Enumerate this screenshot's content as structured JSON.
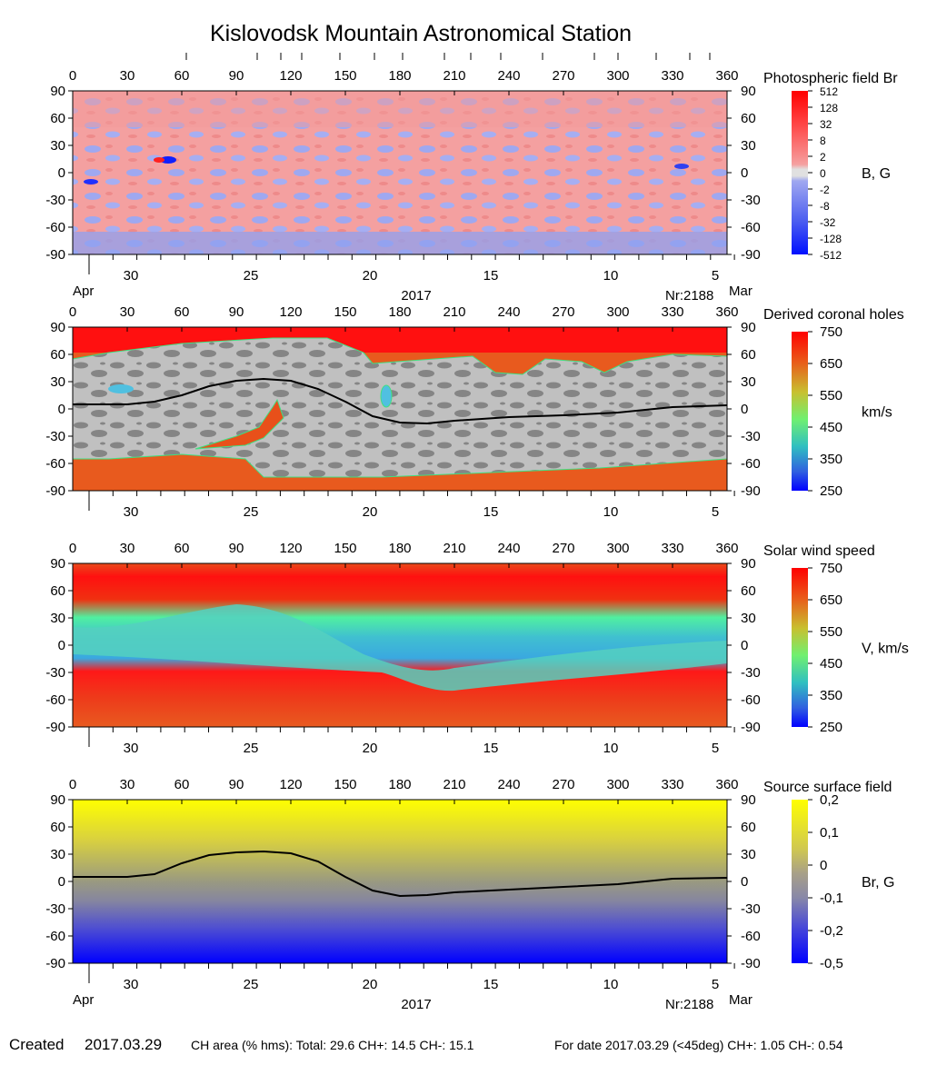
{
  "title": "Kislovodsk Mountain Astronomical Station",
  "footer": {
    "created_label": "Created",
    "created_date": "2017.03.29",
    "ch_area": "CH area (% hms): Total: 29.6 CH+: 14.5    CH-: 15.1",
    "ch_for_date": "For date 2017.03.29 (<45deg) CH+: 1.05    CH-: 0.54"
  },
  "colors": {
    "br_positive": "#f08a8a",
    "br_negative": "#8f9ef0",
    "ch_red": "#f01010",
    "ch_orange": "#e8501a",
    "ch_light_gray": "#c0c0c0",
    "ch_dark_gray": "#808080",
    "neutral_line": "#000000",
    "source_yellow": "#ffff00",
    "source_blue": "#0000ff"
  },
  "chart_data": [
    {
      "type": "heatmap",
      "title": "Photospheric field Br",
      "colorbar_label": "B, G",
      "colorbar_ticks": [
        "512",
        "128",
        "32",
        "8",
        "2",
        "0",
        "-2",
        "-8",
        "-32",
        "-128",
        "-512"
      ],
      "x_top_ticks": [
        0,
        30,
        60,
        90,
        120,
        150,
        180,
        210,
        240,
        270,
        300,
        330,
        360
      ],
      "y_ticks": [
        90,
        60,
        30,
        0,
        -30,
        -60,
        -90
      ],
      "date_ticks": [
        "30",
        "25",
        "20",
        "15",
        "10",
        "5"
      ],
      "month_left": "Apr",
      "month_right": "Mar",
      "year": "2017",
      "rotation": "Nr:2188",
      "xlim": [
        0,
        360
      ],
      "ylim": [
        -90,
        90
      ]
    },
    {
      "type": "heatmap",
      "title": "Derived coronal holes",
      "colorbar_label": "km/s",
      "colorbar_ticks": [
        "750",
        "650",
        "550",
        "450",
        "350",
        "250"
      ],
      "x_top_ticks": [
        0,
        30,
        60,
        90,
        120,
        150,
        180,
        210,
        240,
        270,
        300,
        330,
        360
      ],
      "y_ticks": [
        90,
        60,
        30,
        0,
        -30,
        -60,
        -90
      ],
      "date_ticks": [
        "30",
        "25",
        "20",
        "15",
        "10",
        "5"
      ],
      "neutral_line": {
        "lon": [
          0,
          30,
          45,
          60,
          75,
          90,
          105,
          120,
          135,
          150,
          165,
          180,
          195,
          210,
          240,
          270,
          300,
          330,
          360
        ],
        "lat": [
          5,
          5,
          8,
          15,
          25,
          31,
          33,
          31,
          22,
          8,
          -8,
          -15,
          -16,
          -13,
          -9,
          -7,
          -4,
          2,
          4
        ]
      },
      "xlim": [
        0,
        360
      ],
      "ylim": [
        -90,
        90
      ]
    },
    {
      "type": "heatmap",
      "title": "Solar wind speed",
      "colorbar_label": "V, km/s",
      "colorbar_ticks": [
        "750",
        "650",
        "550",
        "450",
        "350",
        "250"
      ],
      "x_top_ticks": [
        0,
        30,
        60,
        90,
        120,
        150,
        180,
        210,
        240,
        270,
        300,
        330,
        360
      ],
      "y_ticks": [
        90,
        60,
        30,
        0,
        -30,
        -60,
        -90
      ],
      "date_ticks": [
        "30",
        "25",
        "20",
        "15",
        "10",
        "5"
      ],
      "xlim": [
        0,
        360
      ],
      "ylim": [
        -90,
        90
      ]
    },
    {
      "type": "heatmap",
      "title": "Source surface field",
      "colorbar_label": "Br, G",
      "colorbar_ticks": [
        "0,2",
        "0,1",
        "0",
        "-0,1",
        "-0,2",
        "-0,5"
      ],
      "x_top_ticks": [
        0,
        30,
        60,
        90,
        120,
        150,
        180,
        210,
        240,
        270,
        300,
        330,
        360
      ],
      "y_ticks": [
        90,
        60,
        30,
        0,
        -30,
        -60,
        -90
      ],
      "date_ticks": [
        "30",
        "25",
        "20",
        "15",
        "10",
        "5"
      ],
      "month_left": "Apr",
      "month_right": "Mar",
      "year": "2017",
      "rotation": "Nr:2188",
      "neutral_line": {
        "lon": [
          0,
          30,
          45,
          60,
          75,
          90,
          105,
          120,
          135,
          150,
          165,
          180,
          195,
          210,
          240,
          270,
          300,
          330,
          360
        ],
        "lat": [
          5,
          5,
          8,
          20,
          29,
          32,
          33,
          31,
          22,
          5,
          -10,
          -16,
          -15,
          -12,
          -9,
          -6,
          -3,
          3,
          4
        ]
      },
      "xlim": [
        0,
        360
      ],
      "ylim": [
        -90,
        90
      ]
    }
  ]
}
